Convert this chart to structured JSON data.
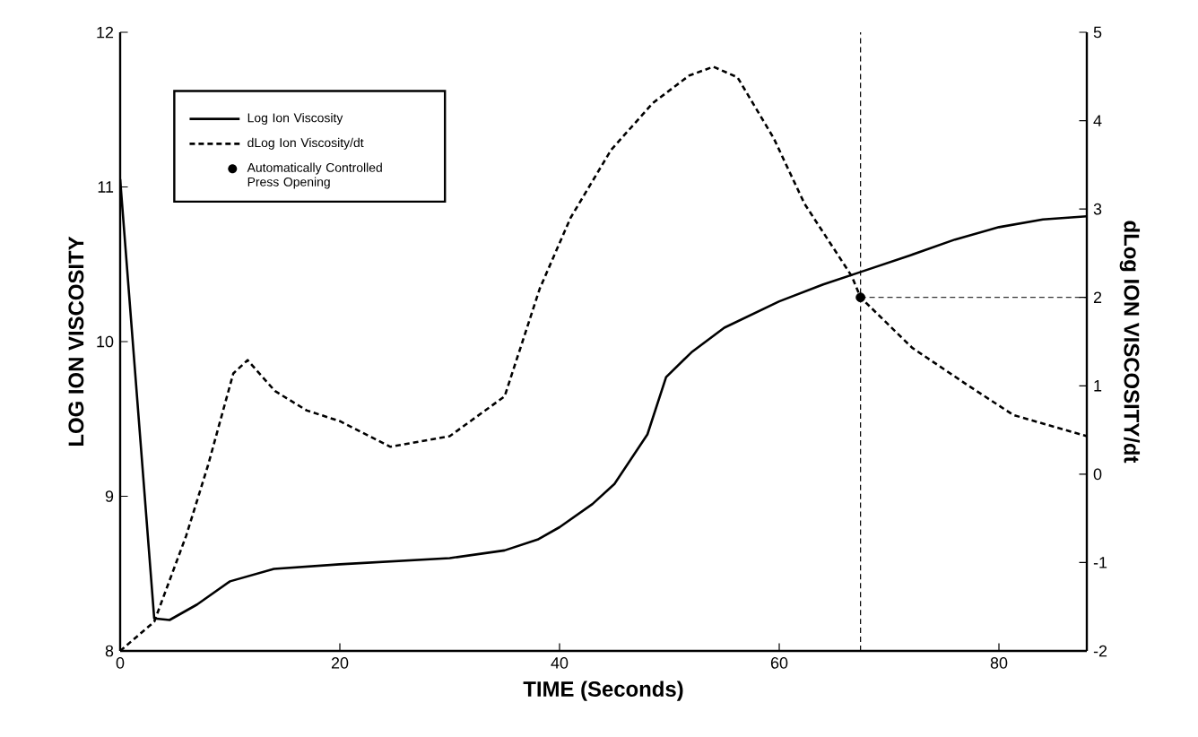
{
  "chart_data": {
    "type": "line",
    "xlabel": "TIME (Seconds)",
    "ylabel": "LOG ION VISCOSITY",
    "y2label": "dLog ION VISCOSITY/dt",
    "xlim": [
      0,
      88
    ],
    "xticks": [
      0,
      20,
      40,
      60,
      80
    ],
    "ylim": [
      8,
      12
    ],
    "yticks": [
      8,
      9,
      10,
      11,
      12
    ],
    "y2lim": [
      -2,
      5
    ],
    "y2ticks": [
      -2,
      -1,
      0,
      1,
      2,
      3,
      4,
      5
    ],
    "grid": false,
    "legend": "top left",
    "series": [
      {
        "name": "Log Ion Viscosity",
        "type": "line",
        "color": "#000000",
        "line_style": "solid",
        "marker": "none",
        "x": [
          0,
          3.1,
          4.5,
          7,
          10,
          14,
          20,
          30,
          35,
          38,
          40,
          43,
          45,
          48,
          49.7,
          52,
          55,
          60,
          64,
          67.4,
          72,
          76,
          80,
          84,
          88
        ],
        "values": [
          11.05,
          8.21,
          8.2,
          8.3,
          8.45,
          8.53,
          8.56,
          8.6,
          8.65,
          8.72,
          8.8,
          8.95,
          9.08,
          9.4,
          9.77,
          9.93,
          10.09,
          10.26,
          10.37,
          10.45,
          10.56,
          10.66,
          10.74,
          10.79,
          10.81
        ]
      },
      {
        "name": "dLog Ion Viscosity/dt",
        "type": "line",
        "axis": "y2",
        "color": "#000000",
        "line_style": "dashed",
        "marker": "none",
        "x": [
          0,
          3.1,
          6,
          8,
          10.3,
          11.6,
          14.1,
          17,
          20,
          24.6,
          30,
          35,
          38.2,
          41,
          44.7,
          48.5,
          51.8,
          54,
          56.2,
          59.5,
          62.3,
          66.6,
          67.4,
          72.1,
          77,
          81.3,
          88
        ],
        "values": [
          -2,
          -1.67,
          -0.7,
          0.1,
          1.14,
          1.29,
          0.94,
          0.72,
          0.6,
          0.31,
          0.43,
          0.88,
          2.1,
          2.9,
          3.67,
          4.2,
          4.51,
          4.61,
          4.49,
          3.8,
          3.06,
          2.24,
          2.0,
          1.43,
          1.02,
          0.67,
          0.43
        ]
      },
      {
        "name": "Automatically Controlled Press Opening",
        "type": "scatter",
        "axis": "y2",
        "color": "#000000",
        "marker": "circle",
        "x": [
          67.4
        ],
        "values": [
          2
        ]
      }
    ],
    "ref_lines": [
      {
        "axis": "x",
        "value": 67.4,
        "line_style": "dashed",
        "color": "#000000"
      },
      {
        "axis": "y2",
        "value": 2,
        "line_style": "dashed",
        "color": "#000000"
      }
    ]
  }
}
